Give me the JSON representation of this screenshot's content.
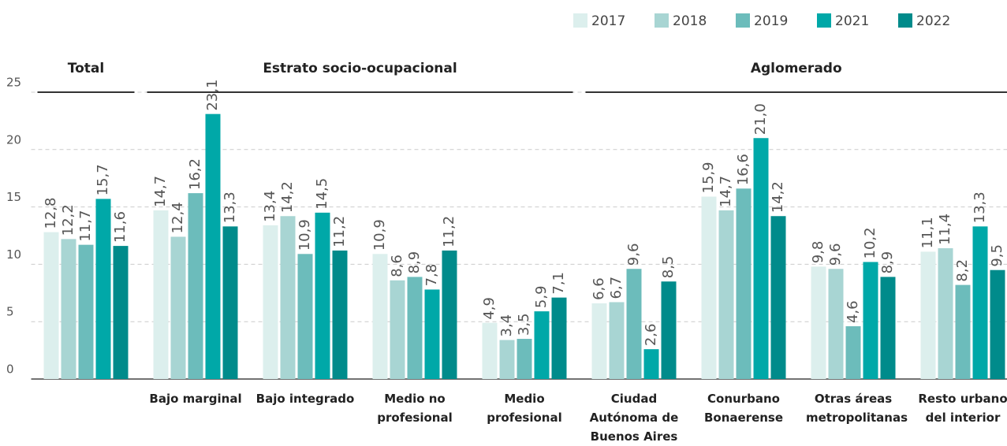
{
  "chart_data": {
    "type": "bar",
    "sections": [
      {
        "title": "Total",
        "categories": [
          null
        ]
      },
      {
        "title": "Estrato socio-ocupacional",
        "categories": [
          "Bajo marginal",
          "Bajo integrado",
          "Medio no profesional",
          "Medio profesional"
        ]
      },
      {
        "title": "Aglomerado",
        "categories": [
          "Ciudad Autónoma de Buenos Aires",
          "Conurbano Bonaerense",
          "Otras áreas metropolitanas",
          "Resto urbano del interior"
        ]
      }
    ],
    "series": [
      {
        "name": "2017",
        "color": "#dcefed",
        "values": [
          12.8,
          14.7,
          13.4,
          10.9,
          4.9,
          6.6,
          15.9,
          9.8,
          11.1
        ],
        "value_labels": [
          "12,8",
          "14,7",
          "13,4",
          "10,9",
          "4,9",
          "6,6",
          "15,9",
          "9,8",
          "11,1"
        ]
      },
      {
        "name": "2018",
        "color": "#a8d5d3",
        "values": [
          12.2,
          12.4,
          14.2,
          8.6,
          3.4,
          6.7,
          14.7,
          9.6,
          11.4
        ],
        "value_labels": [
          "12,2",
          "12,4",
          "14,2",
          "8,6",
          "3,4",
          "6,7",
          "14,7",
          "9,6",
          "11,4"
        ]
      },
      {
        "name": "2019",
        "color": "#6cbcbb",
        "values": [
          11.7,
          16.2,
          10.9,
          8.9,
          3.5,
          9.6,
          16.6,
          4.6,
          8.2
        ],
        "value_labels": [
          "11,7",
          "16,2",
          "10,9",
          "8,9",
          "3,5",
          "9,6",
          "16,6",
          "4,6",
          "8,2"
        ]
      },
      {
        "name": "2021",
        "color": "#00a8a8",
        "values": [
          15.7,
          23.1,
          14.5,
          7.8,
          5.9,
          2.6,
          21.0,
          10.2,
          13.3
        ],
        "value_labels": [
          "15,7",
          "23,1",
          "14,5",
          "7,8",
          "5,9",
          "2,6",
          "21,0",
          "10,2",
          "13,3"
        ]
      },
      {
        "name": "2022",
        "color": "#008b8b",
        "values": [
          11.6,
          13.3,
          11.2,
          11.2,
          7.1,
          8.5,
          14.2,
          8.9,
          9.5
        ],
        "value_labels": [
          "11,6",
          "13,3",
          "11,2",
          "11,2",
          "7,1",
          "8,5",
          "14,2",
          "8,9",
          "9,5"
        ]
      }
    ],
    "ylim": [
      0,
      25
    ],
    "yticks": [
      0,
      5,
      10,
      15,
      20,
      25
    ],
    "grid": true,
    "legend": "top-right"
  }
}
